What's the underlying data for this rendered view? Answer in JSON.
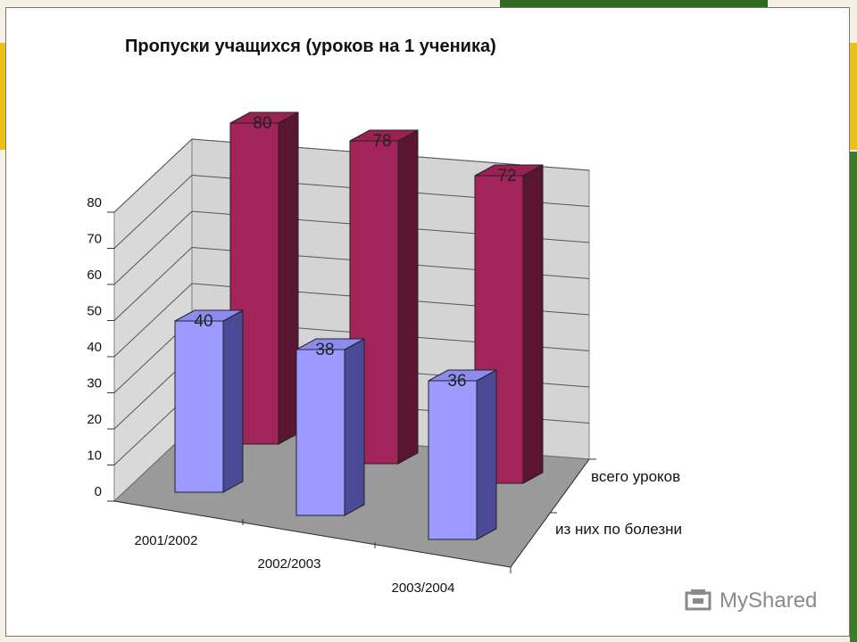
{
  "chart_data": {
    "type": "bar",
    "title": "Пропуски учащихся (уроков на 1 ученика)",
    "categories": [
      "2001/2002",
      "2002/2003",
      "2003/2004"
    ],
    "series": [
      {
        "name": "всего уроков",
        "values": [
          80,
          78,
          72
        ],
        "color": "#a3245a"
      },
      {
        "name": "из них по болезни",
        "values": [
          40,
          38,
          36
        ],
        "color": "#9b9bff"
      }
    ],
    "ylim": [
      0,
      80
    ],
    "yticks": [
      "0",
      "10",
      "20",
      "30",
      "40",
      "50",
      "60",
      "70",
      "80"
    ],
    "grid": true,
    "three_d": true
  },
  "watermark": {
    "text": "MyShared"
  }
}
